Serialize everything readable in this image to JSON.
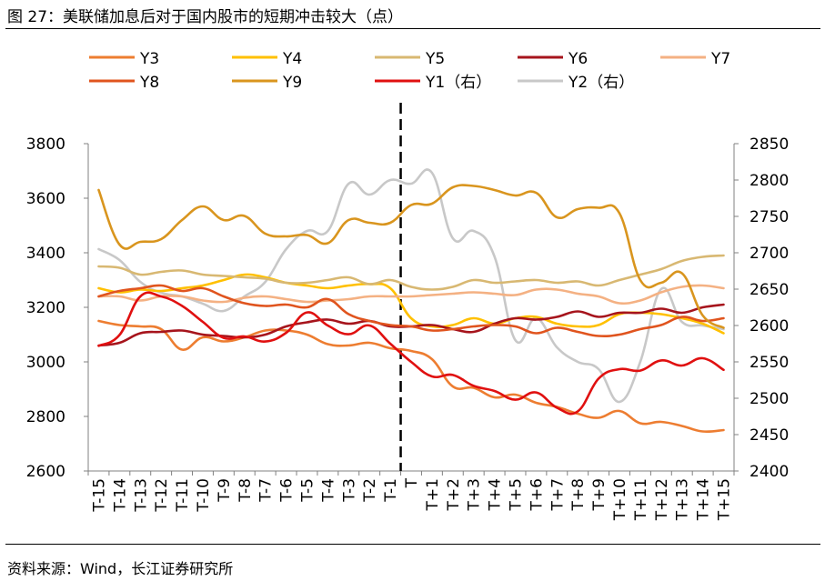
{
  "title": "图 27：美联储加息后对于国内股市的短期冲击较大（点）",
  "source": "资料来源：Wind，长江证券研究所",
  "chart_data": {
    "type": "line",
    "categories": [
      "T-15",
      "T-14",
      "T-13",
      "T-12",
      "T-11",
      "T-10",
      "T-9",
      "T-8",
      "T-7",
      "T-6",
      "T-5",
      "T-4",
      "T-3",
      "T-2",
      "T-1",
      "T",
      "T+1",
      "T+2",
      "T+3",
      "T+4",
      "T+5",
      "T+6",
      "T+7",
      "T+8",
      "T+9",
      "T+10",
      "T+11",
      "T+12",
      "T+13",
      "T+14",
      "T+15"
    ],
    "y_left": {
      "min": 2600,
      "max": 3800,
      "ticks": [
        2600,
        2800,
        3000,
        3200,
        3400,
        3600,
        3800
      ]
    },
    "y_right": {
      "min": 2400,
      "max": 2850,
      "ticks": [
        2400,
        2450,
        2500,
        2550,
        2600,
        2650,
        2700,
        2750,
        2800,
        2850
      ]
    },
    "event_marker": "T",
    "legend_position": "top",
    "series": [
      {
        "name": "Y3",
        "color": "#ED7D31",
        "axis": "left",
        "values": [
          3150,
          3135,
          3130,
          3120,
          3045,
          3090,
          3075,
          3090,
          3115,
          3115,
          3100,
          3065,
          3060,
          3070,
          3050,
          3040,
          3010,
          2910,
          2905,
          2870,
          2880,
          2850,
          2835,
          2810,
          2795,
          2820,
          2775,
          2780,
          2765,
          2745,
          2750
        ]
      },
      {
        "name": "Y4",
        "color": "#FFC000",
        "axis": "left",
        "values": [
          3270,
          3255,
          3265,
          3260,
          3270,
          3280,
          3300,
          3320,
          3310,
          3290,
          3280,
          3270,
          3280,
          3285,
          3270,
          3160,
          3130,
          3135,
          3160,
          3140,
          3160,
          3165,
          3140,
          3130,
          3135,
          3175,
          3180,
          3175,
          3160,
          3140,
          3105
        ]
      },
      {
        "name": "Y5",
        "color": "#D8B872",
        "axis": "left",
        "values": [
          3350,
          3345,
          3320,
          3330,
          3335,
          3320,
          3315,
          3310,
          3305,
          3290,
          3290,
          3300,
          3310,
          3285,
          3300,
          3275,
          3265,
          3275,
          3300,
          3290,
          3295,
          3300,
          3290,
          3295,
          3280,
          3300,
          3320,
          3340,
          3370,
          3385,
          3390
        ]
      },
      {
        "name": "Y6",
        "color": "#A6141C",
        "axis": "left",
        "values": [
          3060,
          3070,
          3105,
          3110,
          3115,
          3100,
          3095,
          3090,
          3100,
          3130,
          3145,
          3155,
          3140,
          3150,
          3130,
          3130,
          3135,
          3120,
          3110,
          3140,
          3160,
          3155,
          3165,
          3185,
          3165,
          3180,
          3180,
          3195,
          3180,
          3200,
          3210
        ]
      },
      {
        "name": "Y7",
        "color": "#F4B183",
        "axis": "left",
        "values": [
          3240,
          3240,
          3225,
          3240,
          3240,
          3225,
          3220,
          3235,
          3240,
          3230,
          3220,
          3225,
          3230,
          3240,
          3240,
          3240,
          3245,
          3250,
          3255,
          3250,
          3245,
          3265,
          3265,
          3250,
          3240,
          3215,
          3225,
          3255,
          3275,
          3280,
          3270
        ]
      },
      {
        "name": "Y8",
        "color": "#E0541E",
        "axis": "left",
        "values": [
          3240,
          3260,
          3270,
          3280,
          3260,
          3270,
          3240,
          3215,
          3205,
          3210,
          3200,
          3230,
          3175,
          3150,
          3135,
          3130,
          3115,
          3120,
          3130,
          3135,
          3130,
          3105,
          3125,
          3110,
          3095,
          3100,
          3120,
          3135,
          3165,
          3150,
          3160
        ]
      },
      {
        "name": "Y9",
        "color": "#D9951E",
        "axis": "left",
        "values": [
          3630,
          3430,
          3440,
          3450,
          3520,
          3570,
          3520,
          3535,
          3470,
          3460,
          3465,
          3435,
          3520,
          3510,
          3510,
          3575,
          3580,
          3640,
          3645,
          3630,
          3610,
          3620,
          3530,
          3560,
          3565,
          3545,
          3300,
          3290,
          3325,
          3170,
          3125
        ]
      },
      {
        "name": "Y1（右）",
        "color": "#E01010",
        "axis": "right",
        "values": [
          2572,
          2587,
          2640,
          2640,
          2627,
          2605,
          2583,
          2585,
          2578,
          2590,
          2618,
          2600,
          2588,
          2600,
          2575,
          2550,
          2530,
          2532,
          2517,
          2510,
          2498,
          2508,
          2487,
          2482,
          2527,
          2540,
          2538,
          2552,
          2545,
          2555,
          2539
        ]
      },
      {
        "name": "Y2（右）",
        "color": "#C8C8C8",
        "axis": "right",
        "values": [
          2705,
          2690,
          2660,
          2645,
          2640,
          2630,
          2620,
          2640,
          2660,
          2705,
          2730,
          2730,
          2795,
          2780,
          2800,
          2795,
          2810,
          2720,
          2730,
          2695,
          2580,
          2610,
          2570,
          2550,
          2540,
          2495,
          2550,
          2650,
          2605,
          2600,
          2595
        ]
      }
    ]
  }
}
